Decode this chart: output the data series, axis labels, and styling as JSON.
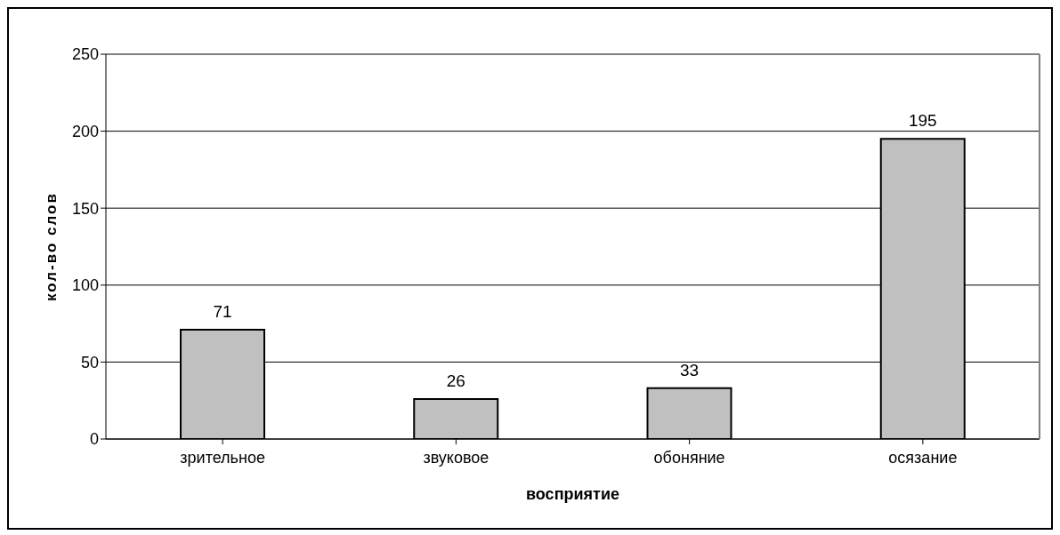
{
  "chart_data": {
    "type": "bar",
    "xlabel": "восприятие",
    "ylabel": "кол-во слов",
    "categories": [
      "зрительное",
      "звуковое",
      "обоняние",
      "осязание"
    ],
    "values": [
      71,
      26,
      33,
      195
    ],
    "color": "#c0c0c0",
    "ylim": [
      0,
      250
    ],
    "yticks": [
      0,
      50,
      100,
      150,
      200,
      250
    ],
    "grid": "y",
    "data_labels": true
  }
}
